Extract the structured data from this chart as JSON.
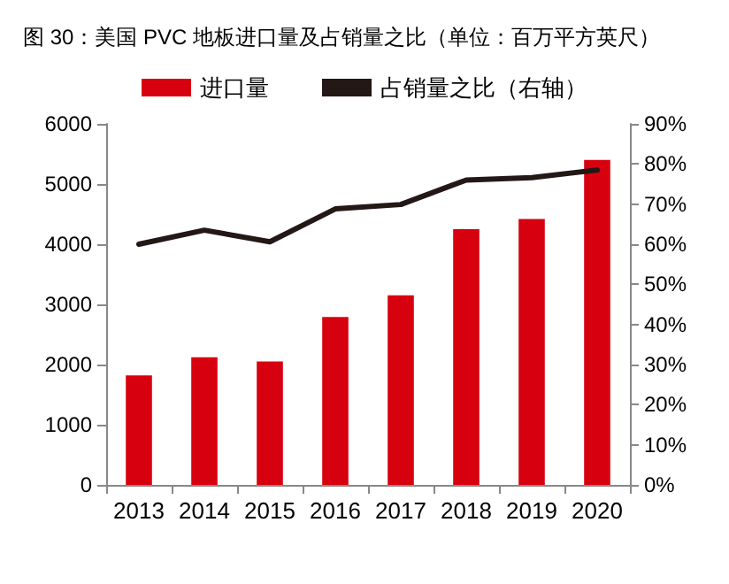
{
  "chart_data": {
    "type": "bar",
    "title": "图 30：美国 PVC 地板进口量及占销量之比（单位：百万平方英尺）",
    "categories": [
      "2013",
      "2014",
      "2015",
      "2016",
      "2017",
      "2018",
      "2019",
      "2020"
    ],
    "series": [
      {
        "name": "进口量",
        "color": "#d7000f",
        "values": [
          1820,
          2120,
          2050,
          2790,
          3150,
          4250,
          4420,
          5400
        ]
      },
      {
        "name": "占销量之比（右轴）",
        "type": "line",
        "axis": "y2",
        "color": "#231815",
        "values": [
          60,
          63.5,
          60.6,
          68.8,
          69.9,
          76,
          76.6,
          78.5
        ]
      }
    ],
    "ylim": [
      0,
      6000
    ],
    "yticks": [
      0,
      1000,
      2000,
      3000,
      4000,
      5000,
      6000
    ],
    "y2lim": [
      0,
      90
    ],
    "y2ticks": [
      {
        "value": 0,
        "label": "0%"
      },
      {
        "value": 10,
        "label": "10%"
      },
      {
        "value": 20,
        "label": "20%"
      },
      {
        "value": 30,
        "label": "30%"
      },
      {
        "value": 40,
        "label": "40%"
      },
      {
        "value": 50,
        "label": "50%"
      },
      {
        "value": 60,
        "label": "60%"
      },
      {
        "value": 70,
        "label": "70%"
      },
      {
        "value": 80,
        "label": "80%"
      },
      {
        "value": 90,
        "label": "90%"
      }
    ],
    "grid": false,
    "legend": "top",
    "marker": "none",
    "line_style": "solid"
  }
}
